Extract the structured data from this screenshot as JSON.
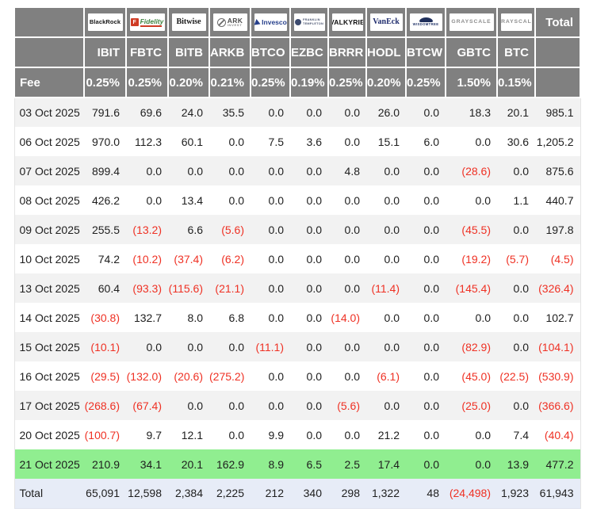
{
  "header": {
    "providers": [
      {
        "id": "blackrock",
        "parts": [
          "BlackRock"
        ]
      },
      {
        "id": "fidelity",
        "icon": "fidelity-f-icon",
        "parts": [
          "Fidelity"
        ]
      },
      {
        "id": "bitwise",
        "parts": [
          "Bitwise"
        ]
      },
      {
        "id": "ark",
        "icon": "ark-circle-icon",
        "parts": [
          "ARK",
          "INVEST"
        ]
      },
      {
        "id": "invesco",
        "icon": "invesco-triangle-icon",
        "parts": [
          "Invesco"
        ]
      },
      {
        "id": "franklin",
        "icon": "franklin-seal-icon",
        "parts": [
          "FRANKLIN",
          "TEMPLETON"
        ]
      },
      {
        "id": "valkyrie",
        "parts": [
          "VALKYRIE"
        ]
      },
      {
        "id": "vaneck",
        "parts": [
          "VanEck"
        ]
      },
      {
        "id": "wisdomtree",
        "icon": "wisdomtree-tree-icon",
        "parts": [
          "WISDOMTREE"
        ]
      },
      {
        "id": "grayscale",
        "parts": [
          "GRAYSCALE"
        ]
      },
      {
        "id": "grayscale-2",
        "parts": [
          "GRAYSCALE"
        ]
      }
    ]
  },
  "chart_data": {
    "type": "table",
    "tickers": [
      "IBIT",
      "FBTC",
      "BITB",
      "ARKB",
      "BTCO",
      "EZBC",
      "BRRR",
      "HODL",
      "BTCW",
      "GBTC",
      "BTC"
    ],
    "fee_label": "Fee",
    "fees": [
      "0.25%",
      "0.25%",
      "0.20%",
      "0.21%",
      "0.25%",
      "0.19%",
      "0.25%",
      "0.20%",
      "0.25%",
      "1.50%",
      "0.15%"
    ],
    "total_label": "Total",
    "rows": [
      {
        "date": "03 Oct 2025",
        "values": [
          791.6,
          69.6,
          24.0,
          35.5,
          0.0,
          0.0,
          0.0,
          26.0,
          0.0,
          18.3,
          20.1,
          985.1
        ]
      },
      {
        "date": "06 Oct 2025",
        "values": [
          970.0,
          112.3,
          60.1,
          0.0,
          7.5,
          3.6,
          0.0,
          15.1,
          6.0,
          0.0,
          30.6,
          1205.2
        ]
      },
      {
        "date": "07 Oct 2025",
        "values": [
          899.4,
          0.0,
          0.0,
          0.0,
          0.0,
          0.0,
          4.8,
          0.0,
          0.0,
          -28.6,
          0.0,
          875.6
        ]
      },
      {
        "date": "08 Oct 2025",
        "values": [
          426.2,
          0.0,
          13.4,
          0.0,
          0.0,
          0.0,
          0.0,
          0.0,
          0.0,
          0.0,
          1.1,
          440.7
        ]
      },
      {
        "date": "09 Oct 2025",
        "values": [
          255.5,
          -13.2,
          6.6,
          -5.6,
          0.0,
          0.0,
          0.0,
          0.0,
          0.0,
          -45.5,
          0.0,
          197.8
        ]
      },
      {
        "date": "10 Oct 2025",
        "values": [
          74.2,
          -10.2,
          -37.4,
          -6.2,
          0.0,
          0.0,
          0.0,
          0.0,
          0.0,
          -19.2,
          -5.7,
          -4.5
        ]
      },
      {
        "date": "13 Oct 2025",
        "values": [
          60.4,
          -93.3,
          -115.6,
          -21.1,
          0.0,
          0.0,
          0.0,
          -11.4,
          0.0,
          -145.4,
          0.0,
          -326.4
        ]
      },
      {
        "date": "14 Oct 2025",
        "values": [
          -30.8,
          132.7,
          8.0,
          6.8,
          0.0,
          0.0,
          -14.0,
          0.0,
          0.0,
          0.0,
          0.0,
          102.7
        ]
      },
      {
        "date": "15 Oct 2025",
        "values": [
          -10.1,
          0.0,
          0.0,
          0.0,
          -11.1,
          0.0,
          0.0,
          0.0,
          0.0,
          -82.9,
          0.0,
          -104.1
        ]
      },
      {
        "date": "16 Oct 2025",
        "values": [
          -29.5,
          -132.0,
          -20.6,
          -275.2,
          0.0,
          0.0,
          0.0,
          -6.1,
          0.0,
          -45.0,
          -22.5,
          -530.9
        ]
      },
      {
        "date": "17 Oct 2025",
        "values": [
          -268.6,
          -67.4,
          0.0,
          0.0,
          0.0,
          0.0,
          -5.6,
          0.0,
          0.0,
          -25.0,
          0.0,
          -366.6
        ]
      },
      {
        "date": "20 Oct 2025",
        "values": [
          -100.7,
          9.7,
          12.1,
          0.0,
          9.9,
          0.0,
          0.0,
          21.2,
          0.0,
          0.0,
          7.4,
          -40.4
        ]
      },
      {
        "date": "21 Oct 2025",
        "values": [
          210.9,
          34.1,
          20.1,
          162.9,
          8.9,
          6.5,
          2.5,
          17.4,
          0.0,
          0.0,
          13.9,
          477.2
        ],
        "highlight": true
      }
    ],
    "total_row": {
      "label": "Total",
      "values": [
        65091,
        12598,
        2384,
        2225,
        212,
        340,
        298,
        1322,
        48,
        -24498,
        1923,
        61943
      ]
    }
  },
  "colors": {
    "header_bg": "#808080",
    "row_alt": "#f2f2f2",
    "negative": "#ef3124",
    "highlight_row": "#90ee90",
    "total_row_bg": "#e7ecf7",
    "text": "#1e1e1e"
  }
}
